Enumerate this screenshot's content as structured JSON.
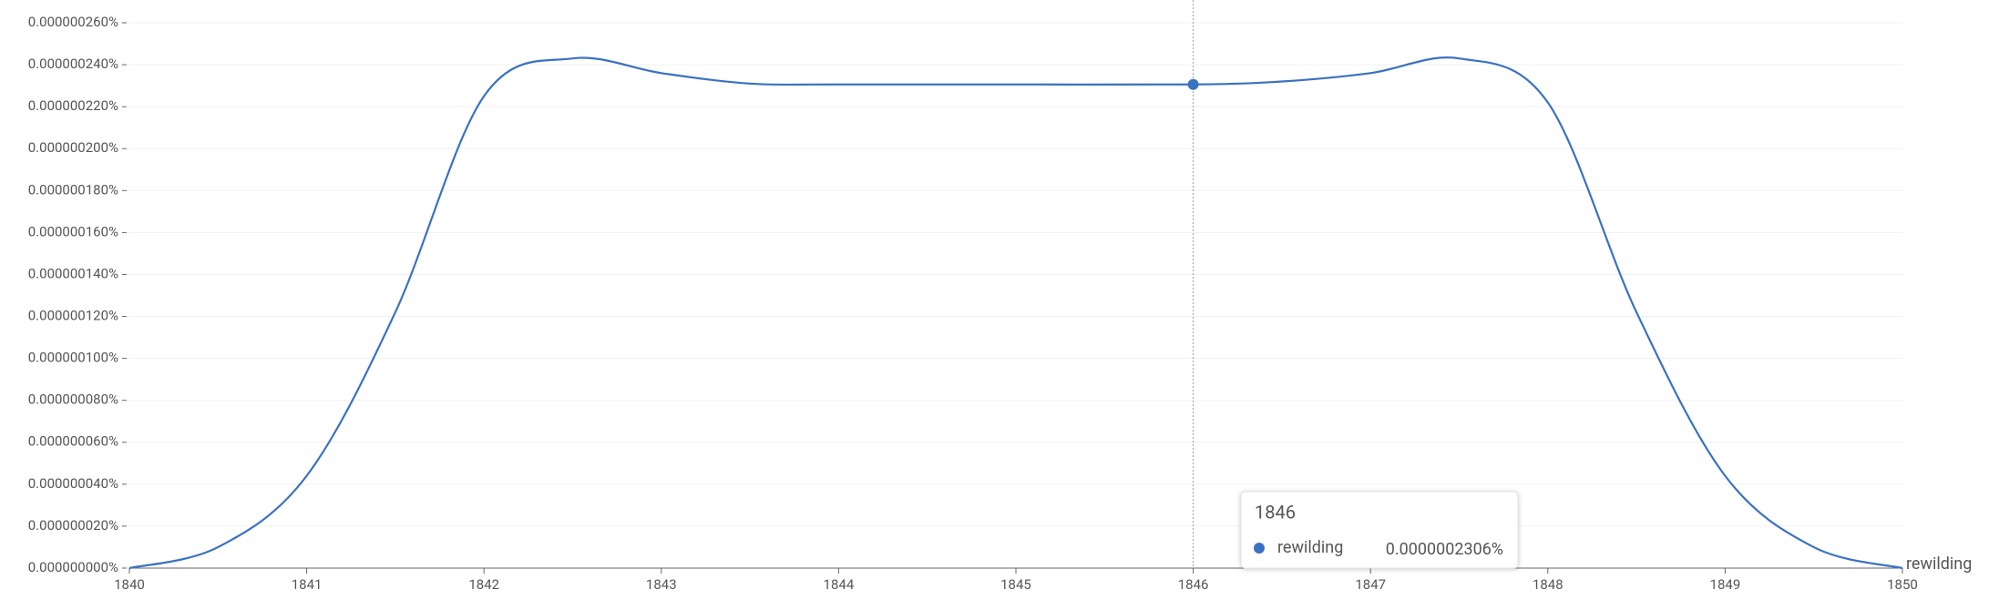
{
  "chart_data": {
    "type": "line",
    "x": [
      1840,
      1840.5,
      1841,
      1841.5,
      1842,
      1842.5,
      1843,
      1843.5,
      1844,
      1845,
      1846,
      1846.5,
      1847,
      1847.5,
      1848,
      1848.5,
      1849,
      1849.5,
      1850
    ],
    "series": [
      {
        "name": "rewilding",
        "color": "#3a72c2",
        "values": [
          0,
          1e-08,
          4.4e-08,
          1.22e-07,
          2.25e-07,
          2.43e-07,
          2.36e-07,
          2.31e-07,
          2.306e-07,
          2.306e-07,
          2.306e-07,
          2.32e-07,
          2.36e-07,
          2.43e-07,
          2.22e-07,
          1.22e-07,
          4.4e-08,
          1e-08,
          0
        ]
      }
    ],
    "xlim": [
      1840,
      1850
    ],
    "xticks": [
      1840,
      1841,
      1842,
      1843,
      1844,
      1845,
      1846,
      1847,
      1848,
      1849,
      1850
    ],
    "ylim": [
      0,
      2.6e-07
    ],
    "yticks": [
      {
        "value": 0,
        "label": "0.000000000%"
      },
      {
        "value": 2e-08,
        "label": "0.000000020%"
      },
      {
        "value": 4e-08,
        "label": "0.000000040%"
      },
      {
        "value": 6e-08,
        "label": "0.000000060%"
      },
      {
        "value": 8e-08,
        "label": "0.000000080%"
      },
      {
        "value": 1e-07,
        "label": "0.000000100%"
      },
      {
        "value": 1.2e-07,
        "label": "0.000000120%"
      },
      {
        "value": 1.4e-07,
        "label": "0.000000140%"
      },
      {
        "value": 1.6e-07,
        "label": "0.000000160%"
      },
      {
        "value": 1.8e-07,
        "label": "0.000000180%"
      },
      {
        "value": 2e-07,
        "label": "0.000000200%"
      },
      {
        "value": 2.2e-07,
        "label": "0.000000220%"
      },
      {
        "value": 2.4e-07,
        "label": "0.000000240%"
      },
      {
        "value": 2.6e-07,
        "label": "0.000000260%"
      }
    ],
    "grid": true,
    "tooltip": {
      "x": 1846,
      "title": "1846",
      "series": "rewilding",
      "value": 2.306e-07,
      "value_label": "0.0000002306%"
    }
  }
}
